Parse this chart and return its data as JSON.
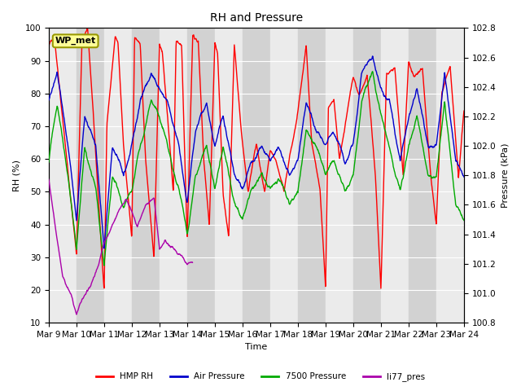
{
  "title": "RH and Pressure",
  "xlabel": "Time",
  "ylabel_left": "RH (%)",
  "ylabel_right": "Pressure (kPa)",
  "xlim": [
    0,
    15
  ],
  "ylim_left": [
    10,
    100
  ],
  "ylim_right": [
    100.8,
    102.8
  ],
  "xtick_labels": [
    "Mar 9",
    "Mar 10",
    "Mar 11",
    "Mar 12",
    "Mar 13",
    "Mar 14",
    "Mar 15",
    "Mar 16",
    "Mar 17",
    "Mar 18",
    "Mar 19",
    "Mar 20",
    "Mar 21",
    "Mar 22",
    "Mar 23",
    "Mar 24"
  ],
  "yticks_left": [
    10,
    20,
    30,
    40,
    50,
    60,
    70,
    80,
    90,
    100
  ],
  "yticks_right": [
    100.8,
    101.0,
    101.2,
    101.4,
    101.6,
    101.8,
    102.0,
    102.2,
    102.4,
    102.6,
    102.8
  ],
  "series": {
    "HMP_RH": {
      "color": "#ff0000",
      "label": "HMP RH",
      "lw": 1.0
    },
    "Air_Pressure": {
      "color": "#0000cc",
      "label": "Air Pressure",
      "lw": 1.0
    },
    "Pressure_7500": {
      "color": "#00aa00",
      "label": "7500 Pressure",
      "lw": 1.0
    },
    "li77_pres": {
      "color": "#aa00aa",
      "label": "li77_pres",
      "lw": 1.0
    }
  },
  "legend_box_color": "#ffff99",
  "legend_box_edge": "#999900",
  "legend_box_text": "WP_met",
  "bg_color": "#e0e0e0",
  "stripe_light": "#ebebeb",
  "stripe_dark": "#d2d2d2",
  "grid_color": "#ffffff"
}
